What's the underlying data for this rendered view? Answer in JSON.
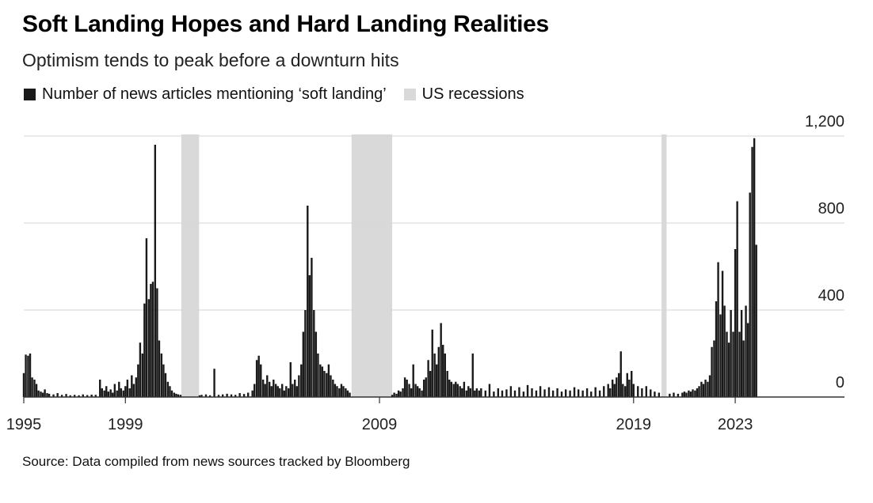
{
  "title": "Soft Landing Hopes and Hard Landing Realities",
  "subtitle": "Optimism tends to peak before a downturn hits",
  "legend": {
    "articles": "Number of news articles mentioning ‘soft landing’",
    "recessions": "US recessions"
  },
  "source": "Source: Data compiled from news sources tracked by Bloomberg",
  "colors": {
    "bar": "#1a1a1a",
    "recession": "#d9d9d9",
    "grid": "#d6d6d6",
    "axis": "#333333"
  },
  "chart_data": {
    "type": "bar",
    "title": "Soft Landing Hopes and Hard Landing Realities",
    "xlabel": "",
    "ylabel": "Number of news articles mentioning ‘soft landing’",
    "xlim": [
      1995,
      2027.3
    ],
    "ylim": [
      0,
      1200
    ],
    "y_ticks": [
      {
        "value": 0,
        "label": "0"
      },
      {
        "value": 400,
        "label": "400"
      },
      {
        "value": 800,
        "label": "800"
      },
      {
        "value": 1200,
        "label": "1,200"
      }
    ],
    "x_ticks": [
      {
        "value": 1995,
        "label": "1995"
      },
      {
        "value": 1999,
        "label": "1999"
      },
      {
        "value": 2009,
        "label": "2009"
      },
      {
        "value": 2019,
        "label": "2019"
      },
      {
        "value": 2023,
        "label": "2023"
      }
    ],
    "recessions": [
      {
        "start": 2001.2,
        "end": 2001.9
      },
      {
        "start": 2007.9,
        "end": 2009.5
      },
      {
        "start": 2020.1,
        "end": 2020.3
      }
    ],
    "series": [
      {
        "name": "Number of news articles mentioning ‘soft landing’",
        "points": [
          [
            1995.0,
            110
          ],
          [
            1995.08,
            195
          ],
          [
            1995.17,
            190
          ],
          [
            1995.25,
            200
          ],
          [
            1995.33,
            90
          ],
          [
            1995.42,
            80
          ],
          [
            1995.5,
            60
          ],
          [
            1995.58,
            30
          ],
          [
            1995.67,
            25
          ],
          [
            1995.75,
            20
          ],
          [
            1995.83,
            35
          ],
          [
            1995.92,
            18
          ],
          [
            1996.0,
            15
          ],
          [
            1996.17,
            12
          ],
          [
            1996.33,
            18
          ],
          [
            1996.5,
            10
          ],
          [
            1996.67,
            14
          ],
          [
            1996.83,
            8
          ],
          [
            1997.0,
            10
          ],
          [
            1997.17,
            8
          ],
          [
            1997.33,
            12
          ],
          [
            1997.5,
            9
          ],
          [
            1997.67,
            11
          ],
          [
            1997.83,
            10
          ],
          [
            1998.0,
            80
          ],
          [
            1998.08,
            40
          ],
          [
            1998.17,
            30
          ],
          [
            1998.25,
            50
          ],
          [
            1998.33,
            25
          ],
          [
            1998.42,
            35
          ],
          [
            1998.5,
            20
          ],
          [
            1998.58,
            60
          ],
          [
            1998.67,
            30
          ],
          [
            1998.75,
            70
          ],
          [
            1998.83,
            40
          ],
          [
            1998.92,
            30
          ],
          [
            1999.0,
            50
          ],
          [
            1999.08,
            80
          ],
          [
            1999.17,
            40
          ],
          [
            1999.25,
            100
          ],
          [
            1999.33,
            60
          ],
          [
            1999.42,
            90
          ],
          [
            1999.5,
            150
          ],
          [
            1999.58,
            250
          ],
          [
            1999.67,
            200
          ],
          [
            1999.75,
            430
          ],
          [
            1999.83,
            730
          ],
          [
            1999.92,
            450
          ],
          [
            2000.0,
            520
          ],
          [
            2000.08,
            530
          ],
          [
            2000.17,
            1160
          ],
          [
            2000.25,
            500
          ],
          [
            2000.33,
            260
          ],
          [
            2000.42,
            200
          ],
          [
            2000.5,
            150
          ],
          [
            2000.58,
            110
          ],
          [
            2000.67,
            70
          ],
          [
            2000.75,
            50
          ],
          [
            2000.83,
            30
          ],
          [
            2000.92,
            20
          ],
          [
            2001.0,
            15
          ],
          [
            2001.08,
            12
          ],
          [
            2001.17,
            10
          ],
          [
            2001.92,
            8
          ],
          [
            2002.0,
            10
          ],
          [
            2002.17,
            12
          ],
          [
            2002.33,
            8
          ],
          [
            2002.5,
            130
          ],
          [
            2002.67,
            10
          ],
          [
            2002.83,
            12
          ],
          [
            2003.0,
            15
          ],
          [
            2003.17,
            12
          ],
          [
            2003.33,
            10
          ],
          [
            2003.5,
            18
          ],
          [
            2003.67,
            14
          ],
          [
            2003.83,
            20
          ],
          [
            2004.0,
            30
          ],
          [
            2004.08,
            60
          ],
          [
            2004.17,
            170
          ],
          [
            2004.25,
            190
          ],
          [
            2004.33,
            150
          ],
          [
            2004.42,
            80
          ],
          [
            2004.5,
            60
          ],
          [
            2004.58,
            100
          ],
          [
            2004.67,
            70
          ],
          [
            2004.75,
            50
          ],
          [
            2004.83,
            80
          ],
          [
            2004.92,
            60
          ],
          [
            2005.0,
            50
          ],
          [
            2005.08,
            40
          ],
          [
            2005.17,
            60
          ],
          [
            2005.25,
            30
          ],
          [
            2005.33,
            50
          ],
          [
            2005.42,
            40
          ],
          [
            2005.5,
            160
          ],
          [
            2005.58,
            60
          ],
          [
            2005.67,
            80
          ],
          [
            2005.75,
            50
          ],
          [
            2005.83,
            100
          ],
          [
            2005.92,
            150
          ],
          [
            2006.0,
            300
          ],
          [
            2006.08,
            400
          ],
          [
            2006.17,
            880
          ],
          [
            2006.25,
            560
          ],
          [
            2006.33,
            640
          ],
          [
            2006.42,
            400
          ],
          [
            2006.5,
            300
          ],
          [
            2006.58,
            200
          ],
          [
            2006.67,
            150
          ],
          [
            2006.75,
            140
          ],
          [
            2006.83,
            120
          ],
          [
            2006.92,
            110
          ],
          [
            2007.0,
            150
          ],
          [
            2007.08,
            100
          ],
          [
            2007.17,
            80
          ],
          [
            2007.25,
            60
          ],
          [
            2007.33,
            50
          ],
          [
            2007.42,
            40
          ],
          [
            2007.5,
            60
          ],
          [
            2007.58,
            50
          ],
          [
            2007.67,
            40
          ],
          [
            2007.75,
            30
          ],
          [
            2007.83,
            20
          ],
          [
            2009.5,
            10
          ],
          [
            2009.58,
            20
          ],
          [
            2009.67,
            15
          ],
          [
            2009.75,
            30
          ],
          [
            2009.83,
            25
          ],
          [
            2009.92,
            40
          ],
          [
            2010.0,
            90
          ],
          [
            2010.08,
            80
          ],
          [
            2010.17,
            60
          ],
          [
            2010.25,
            40
          ],
          [
            2010.33,
            150
          ],
          [
            2010.42,
            60
          ],
          [
            2010.5,
            50
          ],
          [
            2010.58,
            40
          ],
          [
            2010.67,
            30
          ],
          [
            2010.75,
            80
          ],
          [
            2010.83,
            90
          ],
          [
            2010.92,
            170
          ],
          [
            2011.0,
            120
          ],
          [
            2011.08,
            310
          ],
          [
            2011.17,
            200
          ],
          [
            2011.25,
            150
          ],
          [
            2011.33,
            230
          ],
          [
            2011.42,
            340
          ],
          [
            2011.5,
            240
          ],
          [
            2011.58,
            200
          ],
          [
            2011.67,
            120
          ],
          [
            2011.75,
            80
          ],
          [
            2011.83,
            70
          ],
          [
            2011.92,
            60
          ],
          [
            2012.0,
            70
          ],
          [
            2012.08,
            60
          ],
          [
            2012.17,
            50
          ],
          [
            2012.25,
            40
          ],
          [
            2012.33,
            70
          ],
          [
            2012.42,
            30
          ],
          [
            2012.5,
            50
          ],
          [
            2012.58,
            40
          ],
          [
            2012.67,
            200
          ],
          [
            2012.75,
            30
          ],
          [
            2012.83,
            40
          ],
          [
            2012.92,
            30
          ],
          [
            2013.0,
            40
          ],
          [
            2013.17,
            30
          ],
          [
            2013.33,
            60
          ],
          [
            2013.5,
            25
          ],
          [
            2013.67,
            40
          ],
          [
            2013.83,
            30
          ],
          [
            2014.0,
            35
          ],
          [
            2014.17,
            50
          ],
          [
            2014.33,
            30
          ],
          [
            2014.5,
            45
          ],
          [
            2014.67,
            25
          ],
          [
            2014.83,
            55
          ],
          [
            2015.0,
            40
          ],
          [
            2015.17,
            30
          ],
          [
            2015.33,
            50
          ],
          [
            2015.5,
            35
          ],
          [
            2015.67,
            45
          ],
          [
            2015.83,
            30
          ],
          [
            2016.0,
            40
          ],
          [
            2016.17,
            25
          ],
          [
            2016.33,
            35
          ],
          [
            2016.5,
            30
          ],
          [
            2016.67,
            45
          ],
          [
            2016.83,
            35
          ],
          [
            2017.0,
            30
          ],
          [
            2017.17,
            40
          ],
          [
            2017.33,
            25
          ],
          [
            2017.5,
            45
          ],
          [
            2017.67,
            30
          ],
          [
            2017.83,
            50
          ],
          [
            2018.0,
            60
          ],
          [
            2018.08,
            40
          ],
          [
            2018.17,
            80
          ],
          [
            2018.25,
            60
          ],
          [
            2018.33,
            90
          ],
          [
            2018.42,
            110
          ],
          [
            2018.5,
            210
          ],
          [
            2018.58,
            60
          ],
          [
            2018.67,
            50
          ],
          [
            2018.75,
            110
          ],
          [
            2018.83,
            80
          ],
          [
            2018.92,
            120
          ],
          [
            2019.0,
            60
          ],
          [
            2019.17,
            50
          ],
          [
            2019.33,
            40
          ],
          [
            2019.5,
            50
          ],
          [
            2019.67,
            35
          ],
          [
            2019.83,
            25
          ],
          [
            2020.0,
            20
          ],
          [
            2020.42,
            15
          ],
          [
            2020.58,
            20
          ],
          [
            2020.75,
            15
          ],
          [
            2020.92,
            20
          ],
          [
            2021.0,
            25
          ],
          [
            2021.08,
            20
          ],
          [
            2021.17,
            30
          ],
          [
            2021.25,
            25
          ],
          [
            2021.33,
            35
          ],
          [
            2021.42,
            30
          ],
          [
            2021.5,
            40
          ],
          [
            2021.58,
            50
          ],
          [
            2021.67,
            70
          ],
          [
            2021.75,
            60
          ],
          [
            2021.83,
            80
          ],
          [
            2021.92,
            70
          ],
          [
            2022.0,
            100
          ],
          [
            2022.08,
            230
          ],
          [
            2022.17,
            260
          ],
          [
            2022.25,
            440
          ],
          [
            2022.33,
            620
          ],
          [
            2022.42,
            380
          ],
          [
            2022.5,
            580
          ],
          [
            2022.58,
            420
          ],
          [
            2022.67,
            300
          ],
          [
            2022.75,
            250
          ],
          [
            2022.83,
            400
          ],
          [
            2022.92,
            300
          ],
          [
            2023.0,
            680
          ],
          [
            2023.08,
            900
          ],
          [
            2023.17,
            300
          ],
          [
            2023.25,
            400
          ],
          [
            2023.33,
            260
          ],
          [
            2023.42,
            420
          ],
          [
            2023.5,
            340
          ],
          [
            2023.58,
            940
          ],
          [
            2023.67,
            1150
          ],
          [
            2023.75,
            1190
          ],
          [
            2023.83,
            700
          ]
        ]
      }
    ]
  }
}
